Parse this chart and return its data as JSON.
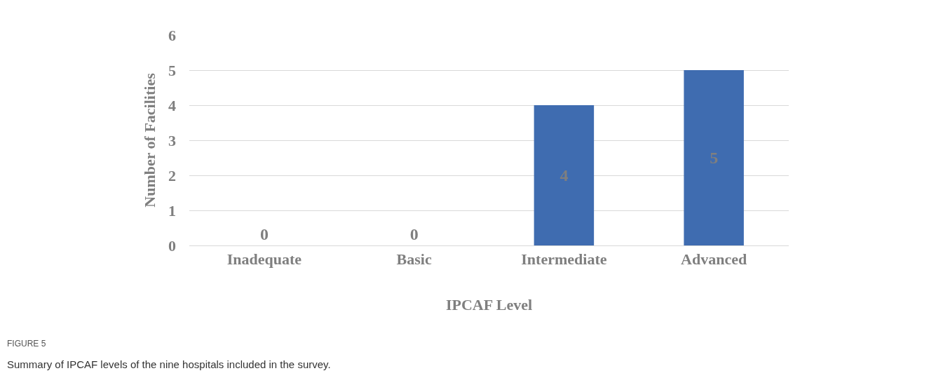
{
  "chart_data": {
    "type": "bar",
    "xlabel": "IPCAF Level",
    "ylabel": "Number of Facilities",
    "categories": [
      "Inadequate",
      "Basic",
      "Intermediate",
      "Advanced"
    ],
    "values": [
      0,
      0,
      4,
      5
    ],
    "color": "#3f6cb0",
    "ylim": [
      0,
      6
    ],
    "yticks": [
      0,
      1,
      2,
      3,
      4,
      5,
      6
    ],
    "grid": "y",
    "data_labels": true,
    "annotations": [
      "FIGURE 5",
      "Summary of IPCAF levels of the nine hospitals included in the survey."
    ]
  }
}
